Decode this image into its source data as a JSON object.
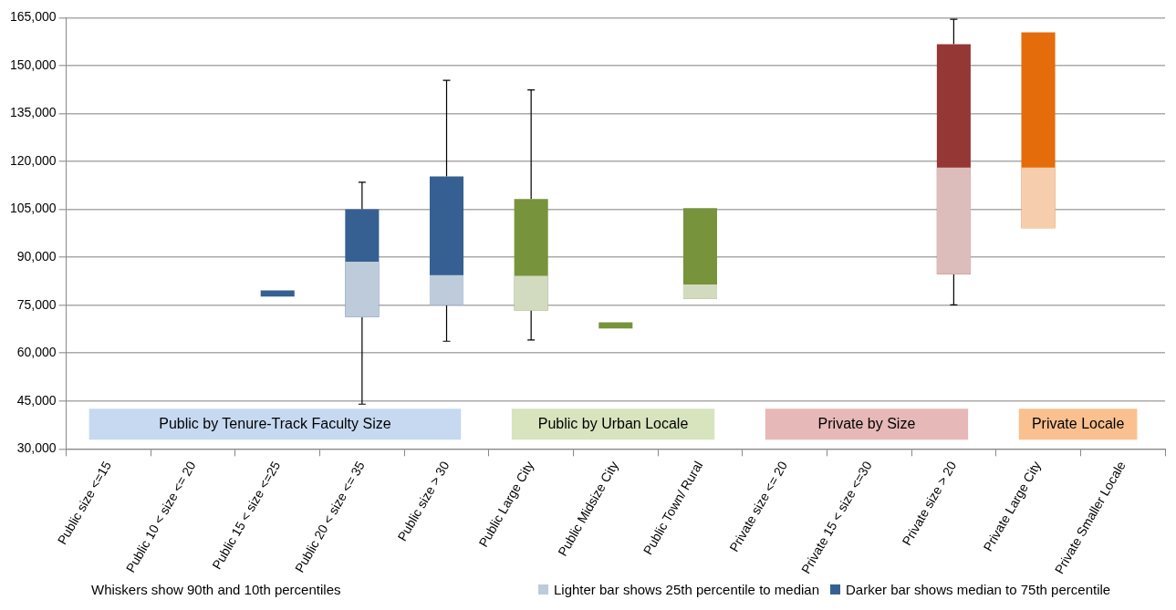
{
  "chart_data": {
    "type": "box",
    "categories": [
      "Public size <=15",
      "Public 10 < size <= 20",
      "Public 15 < size <=25",
      "Public 20 < size <= 35",
      "Public size > 30",
      "Public Large City",
      "Public Midsize City",
      "Public Town/ Rural",
      "Private size <= 20",
      "Private 15 < size <=30",
      "Private size > 20",
      "Private Large City",
      "Private Smaller Locale"
    ],
    "series": [
      {
        "color": "#366092",
        "boxes": [
          null,
          null,
          {
            "low": null,
            "q1": 77700,
            "median": 77700,
            "q3": 79600,
            "high": null
          },
          {
            "low": 44000,
            "q1": 71300,
            "median": 88600,
            "q3": 105000,
            "high": 113500
          },
          {
            "low": 63700,
            "q1": 75000,
            "median": 84400,
            "q3": 115300,
            "high": 145400
          },
          null,
          null,
          null,
          null,
          null,
          null,
          null,
          null
        ]
      },
      {
        "color": "#77933c",
        "boxes": [
          null,
          null,
          null,
          null,
          null,
          {
            "low": 64100,
            "q1": 73300,
            "median": 84200,
            "q3": 108200,
            "high": 142400
          },
          {
            "low": null,
            "q1": 67700,
            "median": 67700,
            "q3": 69600,
            "high": null
          },
          {
            "low": null,
            "q1": 77000,
            "median": 81500,
            "q3": 105400,
            "high": null
          },
          null,
          null,
          null,
          null,
          null
        ]
      },
      {
        "color": "#953735",
        "boxes": [
          null,
          null,
          null,
          null,
          null,
          null,
          null,
          null,
          null,
          null,
          {
            "low": 75100,
            "q1": 84700,
            "median": 118100,
            "q3": 156700,
            "high": 164500
          },
          null,
          null
        ]
      },
      {
        "color": "#e46c0a",
        "boxes": [
          null,
          null,
          null,
          null,
          null,
          null,
          null,
          null,
          null,
          null,
          null,
          {
            "low": null,
            "q1": 99100,
            "median": 118100,
            "q3": 160400,
            "high": null
          },
          null
        ]
      }
    ],
    "bands": [
      {
        "axis": "x",
        "from": "Public size <=15",
        "to": "Public size > 30",
        "label": "Public by Tenure-Track Faculty Size",
        "color": "#c6d9f1"
      },
      {
        "axis": "x",
        "from": "Public Large City",
        "to": "Public Town/ Rural",
        "label": "Public by Urban Locale",
        "color": "#d7e4bd"
      },
      {
        "axis": "x",
        "from": "Private size <= 20",
        "to": "Private size > 20",
        "label": "Private by Size",
        "color": "#e6b9b8"
      },
      {
        "axis": "x",
        "from": "Private Large City",
        "to": "Private Smaller Locale",
        "label": "Private Locale",
        "color": "#fac090"
      }
    ],
    "ylim": [
      30000,
      165000
    ],
    "yticks": [
      {
        "value": 30000,
        "label": "30,000"
      },
      {
        "value": 45000,
        "label": "45,000"
      },
      {
        "value": 60000,
        "label": "60,000"
      },
      {
        "value": 75000,
        "label": "75,000"
      },
      {
        "value": 90000,
        "label": "90,000"
      },
      {
        "value": 105000,
        "label": "105,000"
      },
      {
        "value": 120000,
        "label": "120,000"
      },
      {
        "value": 135000,
        "label": "135,000"
      },
      {
        "value": 150000,
        "label": "150,000"
      },
      {
        "value": 165000,
        "label": "165,000"
      }
    ],
    "grid": "y",
    "annotations": [
      "Whiskers show 90th and 10th percentiles",
      "Lighter bar shows 25th percentile to median",
      "Darker bar shows median to 75th percentile"
    ]
  }
}
